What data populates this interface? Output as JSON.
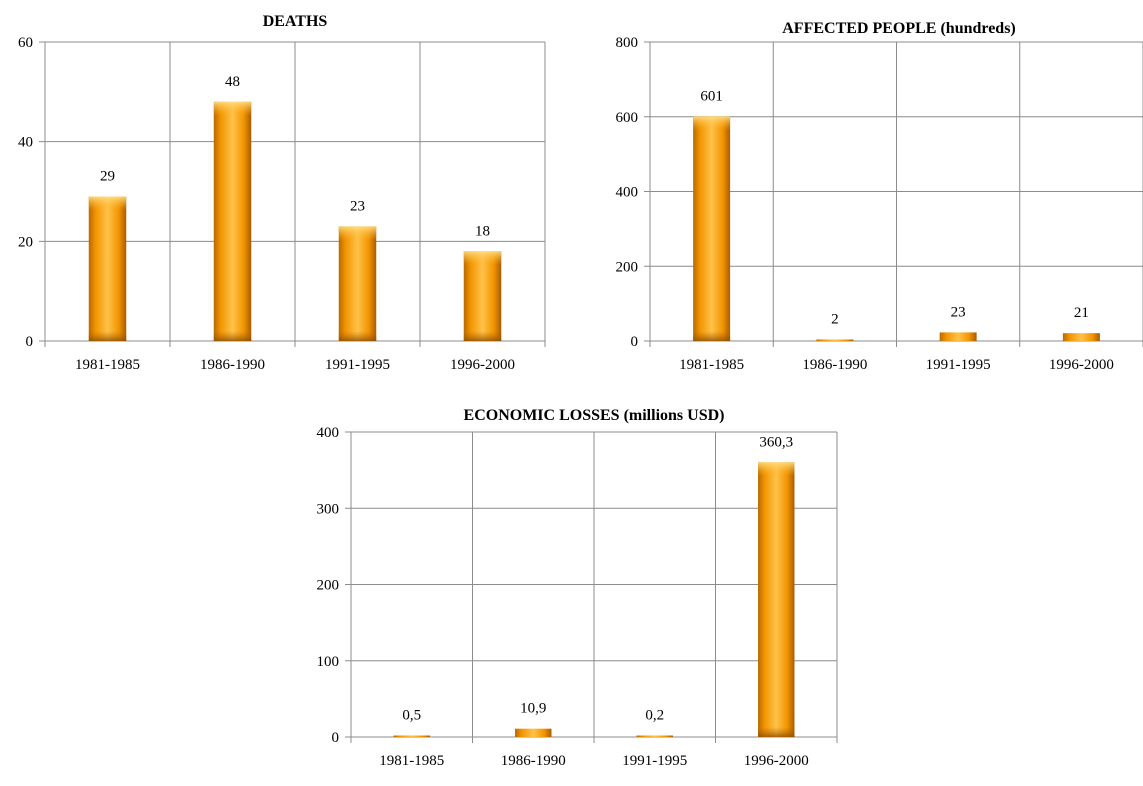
{
  "chart_data": [
    {
      "type": "bar",
      "title": "DEATHS",
      "categories": [
        "1981-1985",
        "1986-1990",
        "1991-1995",
        "1996-2000"
      ],
      "values": [
        29,
        48,
        23,
        18
      ],
      "value_labels": [
        "29",
        "48",
        "23",
        "18"
      ],
      "yticks": [
        "0",
        "20",
        "40",
        "60"
      ],
      "ylim": [
        0,
        60
      ],
      "grid": true,
      "legend": "none",
      "bar_color": "#f59a00"
    },
    {
      "type": "bar",
      "title": "AFFECTED PEOPLE (hundreds)",
      "categories": [
        "1981-1985",
        "1986-1990",
        "1991-1995",
        "1996-2000"
      ],
      "values": [
        601,
        2,
        23,
        21
      ],
      "value_labels": [
        "601",
        "2",
        "23",
        "21"
      ],
      "yticks": [
        "0",
        "200",
        "400",
        "600",
        "800"
      ],
      "ylim": [
        0,
        800
      ],
      "grid": true,
      "legend": "none",
      "bar_color": "#f59a00"
    },
    {
      "type": "bar",
      "title": "ECONOMIC  LOSSES (millions USD)",
      "categories": [
        "1981-1985",
        "1986-1990",
        "1991-1995",
        "1996-2000"
      ],
      "values": [
        0.5,
        10.9,
        0.2,
        360.3
      ],
      "value_labels": [
        "0,5",
        "10,9",
        "0,2",
        "360,3"
      ],
      "yticks": [
        "0",
        "100",
        "200",
        "300",
        "400"
      ],
      "ylim": [
        0,
        400
      ],
      "grid": true,
      "legend": "none",
      "bar_color": "#f59a00"
    }
  ]
}
